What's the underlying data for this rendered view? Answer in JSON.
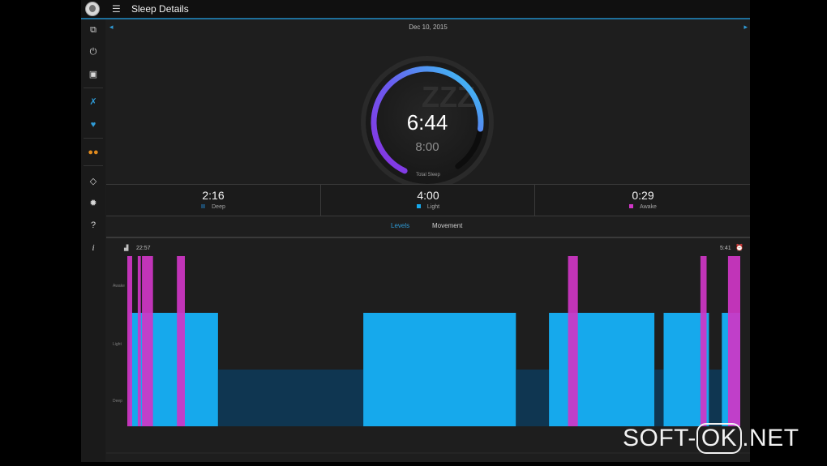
{
  "app": {
    "title": "Sleep Details"
  },
  "sleep": {
    "date": "Dec 10, 2015",
    "total": "6:44",
    "goal": "8:00",
    "total_label": "Total Sleep",
    "progress": 0.84
  },
  "stats": [
    {
      "value": "2:16",
      "label": "Deep",
      "color": "#1e4a6a"
    },
    {
      "value": "4:00",
      "label": "Light",
      "color": "#16a9ec"
    },
    {
      "value": "0:29",
      "label": "Awake",
      "color": "#cf36c6"
    }
  ],
  "tabs": {
    "levels": "Levels",
    "movement": "Movement"
  },
  "chart_data": {
    "type": "bar",
    "start_label": "22:57",
    "end_label": "5:41",
    "y_levels": [
      "Awake",
      "Light",
      "Deep"
    ],
    "segments": [
      {
        "level": "Light",
        "start": 0.004,
        "end": 0.148
      },
      {
        "level": "Deep",
        "start": 0.148,
        "end": 0.385
      },
      {
        "level": "Light",
        "start": 0.385,
        "end": 0.634
      },
      {
        "level": "Deep",
        "start": 0.634,
        "end": 0.688
      },
      {
        "level": "Light",
        "start": 0.688,
        "end": 0.86
      },
      {
        "level": "Deep",
        "start": 0.86,
        "end": 0.875
      },
      {
        "level": "Light",
        "start": 0.875,
        "end": 0.949
      },
      {
        "level": "Deep",
        "start": 0.949,
        "end": 0.97
      },
      {
        "level": "Light",
        "start": 0.97,
        "end": 1.0
      }
    ],
    "awake": [
      {
        "start": 0.0,
        "end": 0.008
      },
      {
        "start": 0.017,
        "end": 0.022
      },
      {
        "start": 0.024,
        "end": 0.042
      },
      {
        "start": 0.081,
        "end": 0.094
      },
      {
        "start": 0.719,
        "end": 0.735
      },
      {
        "start": 0.935,
        "end": 0.945
      },
      {
        "start": 0.98,
        "end": 1.0
      }
    ],
    "colors": {
      "awake": "#cf36c6",
      "light": "#16a9ec",
      "deep": "#0f3651"
    }
  },
  "watermark": {
    "left": "SOFT-",
    "box": "OK",
    "right": ".NET"
  }
}
